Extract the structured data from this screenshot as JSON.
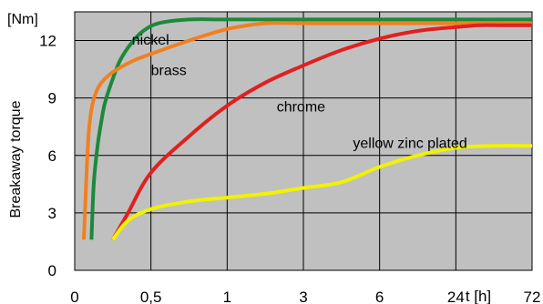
{
  "chart_data": {
    "type": "line",
    "title": "",
    "xlabel": "t [h]",
    "ylabel": "Breakaway torque",
    "unit": "[Nm]",
    "x_ticks": [
      "0",
      "0,5",
      "1",
      "3",
      "6",
      "24",
      "72"
    ],
    "y_ticks": [
      0,
      3,
      6,
      9,
      12
    ],
    "ylim": [
      0,
      13.5
    ],
    "grid": true,
    "legend": "none",
    "plot_background": "#c0c0c0",
    "series": [
      {
        "name": "nickel",
        "color": "#1a8a3a",
        "x_pos": [
          0.22,
          0.25,
          0.3,
          0.35,
          0.4,
          0.5,
          0.6,
          0.75,
          0.9,
          1.1,
          1.5,
          2,
          3,
          4,
          5,
          6
        ],
        "y": [
          1.6,
          4.5,
          6.5,
          7.8,
          8.8,
          10.0,
          11.0,
          11.9,
          12.5,
          12.9,
          13.1,
          13.1,
          13.1,
          13.1,
          13.1,
          13.1
        ]
      },
      {
        "name": "brass",
        "color": "#f08020",
        "x_pos": [
          0.12,
          0.15,
          0.18,
          0.22,
          0.28,
          0.35,
          0.45,
          0.6,
          0.8,
          1.0,
          1.5,
          2,
          2.5,
          3,
          3.5,
          4,
          5,
          6
        ],
        "y": [
          1.6,
          4.5,
          7.0,
          8.4,
          9.3,
          9.8,
          10.2,
          10.6,
          11.0,
          11.3,
          12.0,
          12.6,
          12.9,
          12.9,
          12.9,
          12.9,
          12.9,
          12.9
        ]
      },
      {
        "name": "chrome",
        "color": "#e02020",
        "x_pos": [
          0.5,
          0.7,
          1.0,
          1.5,
          2.0,
          2.5,
          3.0,
          3.5,
          4.0,
          4.5,
          5.0,
          5.3,
          5.6,
          6.0
        ],
        "y": [
          1.6,
          3.0,
          5.1,
          7.0,
          8.6,
          9.8,
          10.7,
          11.5,
          12.1,
          12.5,
          12.7,
          12.8,
          12.8,
          12.8
        ]
      },
      {
        "name": "yellow zinc plated",
        "color": "#f2f200",
        "x_pos": [
          0.5,
          0.7,
          1.0,
          1.5,
          2.0,
          2.5,
          3.0,
          3.5,
          4.0,
          4.5,
          5.0,
          5.5,
          6.0
        ],
        "y": [
          1.6,
          2.6,
          3.2,
          3.6,
          3.8,
          4.0,
          4.3,
          4.6,
          5.4,
          6.0,
          6.4,
          6.5,
          6.5
        ]
      }
    ]
  }
}
